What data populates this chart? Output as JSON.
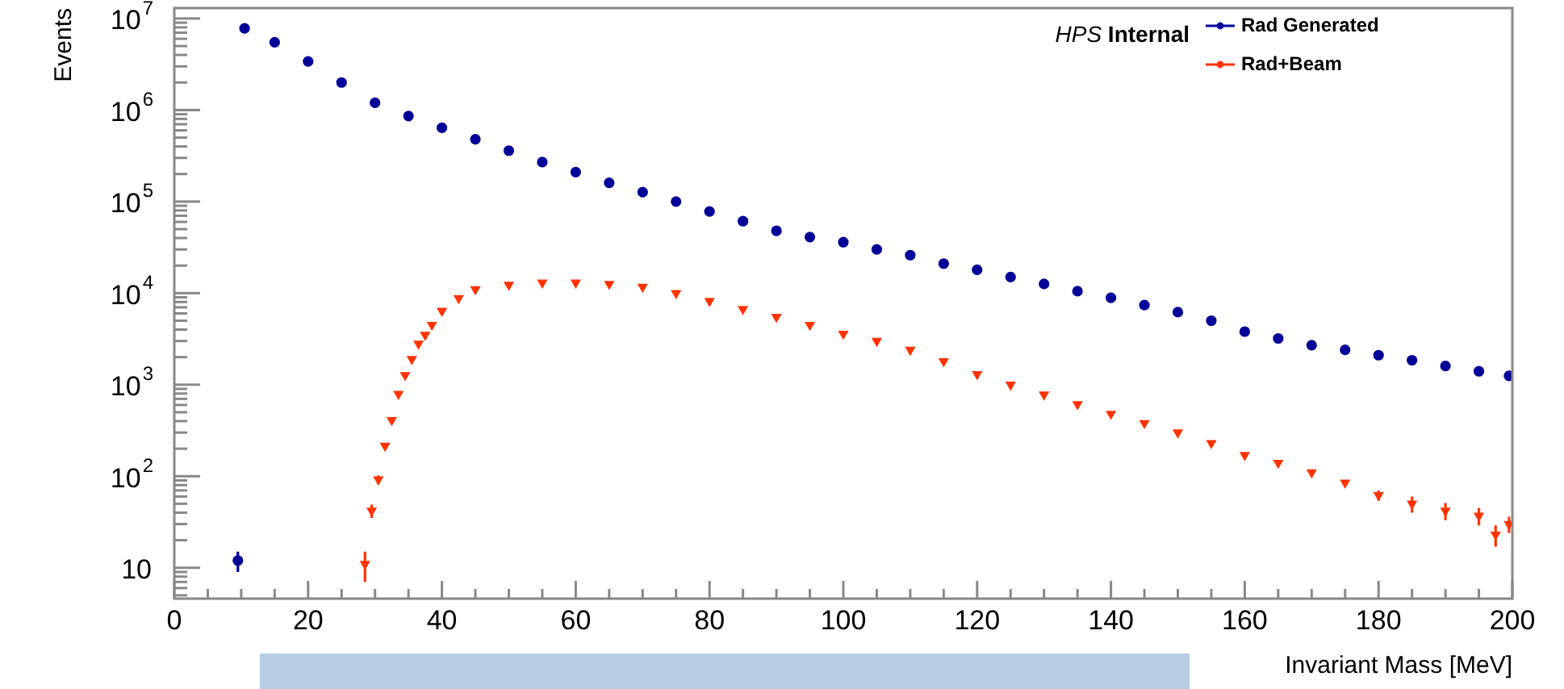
{
  "chart_data": {
    "type": "scatter",
    "xlabel": "Invariant Mass [MeV]",
    "ylabel": "Events",
    "log": "y",
    "legend": "top right",
    "grid": false,
    "annotations": [
      "HPS Internal"
    ],
    "xlim": [
      0,
      200
    ],
    "xticks": [
      0,
      {
        "value": 5,
        "label": null
      },
      {
        "value": 10,
        "label": null
      },
      {
        "value": 15,
        "label": null
      },
      20,
      {
        "value": 25,
        "label": null
      },
      {
        "value": 30,
        "label": null
      },
      {
        "value": 35,
        "label": null
      },
      40,
      {
        "value": 45,
        "label": null
      },
      {
        "value": 50,
        "label": null
      },
      {
        "value": 55,
        "label": null
      },
      60,
      {
        "value": 65,
        "label": null
      },
      {
        "value": 70,
        "label": null
      },
      {
        "value": 75,
        "label": null
      },
      80,
      {
        "value": 85,
        "label": null
      },
      {
        "value": 90,
        "label": null
      },
      {
        "value": 95,
        "label": null
      },
      100,
      {
        "value": 105,
        "label": null
      },
      {
        "value": 110,
        "label": null
      },
      {
        "value": 115,
        "label": null
      },
      120,
      {
        "value": 125,
        "label": null
      },
      {
        "value": 130,
        "label": null
      },
      {
        "value": 135,
        "label": null
      },
      140,
      {
        "value": 145,
        "label": null
      },
      {
        "value": 150,
        "label": null
      },
      {
        "value": 155,
        "label": null
      },
      160,
      {
        "value": 165,
        "label": null
      },
      {
        "value": 170,
        "label": null
      },
      {
        "value": 175,
        "label": null
      },
      180,
      {
        "value": 185,
        "label": null
      },
      {
        "value": 190,
        "label": null
      },
      {
        "value": 195,
        "label": null
      },
      200
    ],
    "ylim": [
      4.6,
      13000000
    ],
    "yticks": [
      10,
      {
        "value": 100,
        "label": "10$^{2}$"
      },
      {
        "value": 1000,
        "label": "10$^{3}$"
      },
      {
        "value": 10000,
        "label": "10$^{4}$"
      },
      {
        "value": 100000,
        "label": "10$^{5}$"
      },
      {
        "value": 1000000,
        "label": "10$^{6}$"
      },
      {
        "value": 10000000,
        "label": "10$^{7}$"
      }
    ],
    "series": [
      {
        "name": "Rad Generated",
        "color": "#000099",
        "marker": "circle",
        "x": [
          9.5,
          10.5,
          15,
          20,
          25,
          30,
          35,
          40,
          45,
          50,
          55,
          60,
          65,
          70,
          75,
          80,
          85,
          90,
          95,
          100,
          105,
          110,
          115,
          120,
          125,
          130,
          135,
          140,
          145,
          150,
          155,
          160,
          165,
          170,
          175,
          180,
          185,
          190,
          195,
          199.5
        ],
        "values": [
          12,
          7800000,
          5500000,
          3400000,
          2000000,
          1200000,
          860000,
          640000,
          480000,
          360000,
          270000,
          210000,
          160000,
          127000,
          100000,
          78000,
          61000,
          48000,
          41000,
          36000,
          30000,
          26000,
          21000,
          18000,
          15000,
          12600,
          10500,
          8900,
          7400,
          6200,
          5000,
          3800,
          3200,
          2700,
          2400,
          2100,
          1850,
          1600,
          1400,
          1250
        ],
        "errors": [
          3,
          null,
          null,
          null,
          null,
          null,
          null,
          null,
          null,
          null,
          null,
          null,
          null,
          null,
          null,
          null,
          null,
          null,
          null,
          null,
          null,
          null,
          null,
          null,
          null,
          null,
          null,
          null,
          null,
          null,
          null,
          null,
          null,
          null,
          null,
          null,
          null,
          null,
          null,
          null
        ]
      },
      {
        "name": "Rad+Beam",
        "color": "#ff3300",
        "marker": "triangle",
        "x": [
          28.5,
          29.5,
          30.5,
          31.5,
          32.5,
          33.5,
          34.5,
          35.5,
          36.5,
          37.5,
          38.5,
          40,
          42.5,
          45,
          50,
          55,
          60,
          65,
          70,
          75,
          80,
          85,
          90,
          95,
          100,
          105,
          110,
          115,
          120,
          125,
          130,
          135,
          140,
          145,
          150,
          155,
          160,
          165,
          170,
          175,
          180,
          185,
          190,
          195,
          197.5,
          199.5
        ],
        "values": [
          11,
          42,
          92,
          215,
          410,
          790,
          1270,
          1900,
          2800,
          3500,
          4500,
          6400,
          8800,
          11000,
          12300,
          13000,
          13000,
          12600,
          11700,
          10000,
          8200,
          6700,
          5500,
          4500,
          3600,
          3000,
          2400,
          1800,
          1300,
          1000,
          780,
          610,
          480,
          380,
          300,
          230,
          170,
          140,
          110,
          85,
          62,
          50,
          42,
          37,
          23,
          30
        ],
        "errors": [
          4,
          7,
          10,
          null,
          null,
          null,
          null,
          null,
          null,
          null,
          null,
          null,
          null,
          null,
          null,
          null,
          null,
          null,
          null,
          null,
          null,
          null,
          null,
          null,
          null,
          null,
          null,
          null,
          null,
          null,
          null,
          null,
          null,
          null,
          null,
          null,
          null,
          null,
          null,
          null,
          8,
          10,
          9,
          8,
          6,
          6
        ]
      }
    ]
  }
}
